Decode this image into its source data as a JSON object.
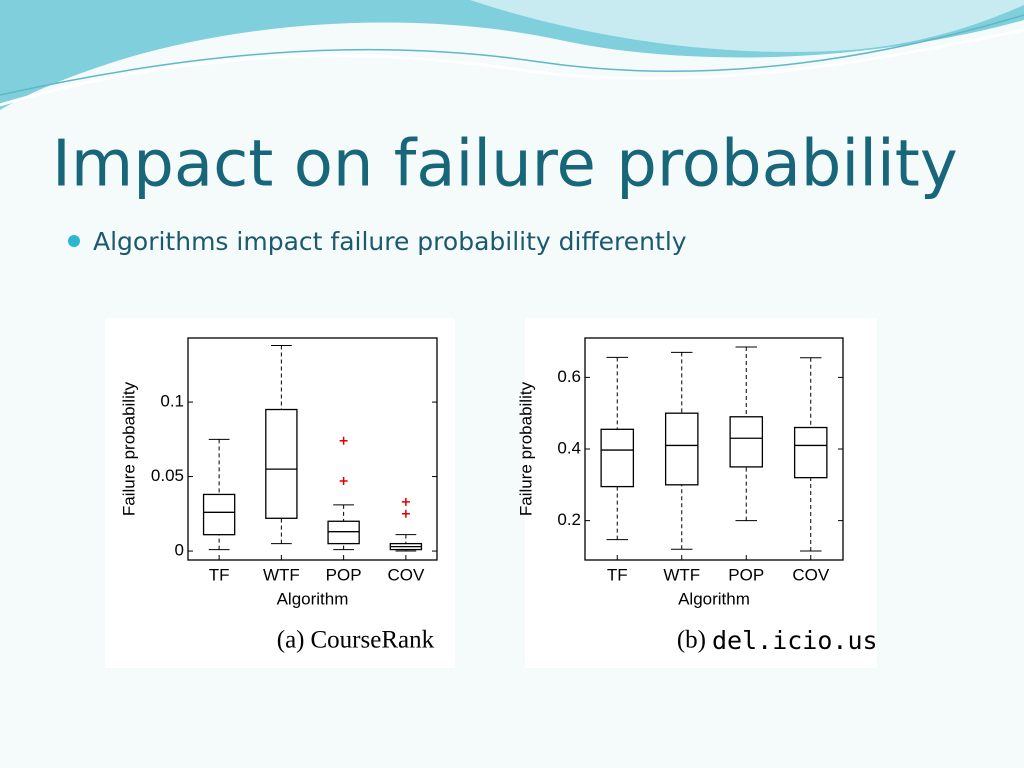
{
  "title": "Impact on failure probability",
  "bullets": [
    "Algorithms impact failure probability differently"
  ],
  "chart_data": [
    {
      "type": "box",
      "caption_label": "(a)",
      "caption": "CourseRank",
      "xlabel": "Algorithm",
      "ylabel": "Failure probability",
      "categories": [
        "TF",
        "WTF",
        "POP",
        "COV"
      ],
      "min": [
        0.001,
        0.005,
        0.001,
        0
      ],
      "q1": [
        0.011,
        0.022,
        0.005,
        0.001
      ],
      "median": [
        0.026,
        0.055,
        0.013,
        0.003
      ],
      "q3": [
        0.038,
        0.095,
        0.02,
        0.005
      ],
      "max": [
        0.075,
        0.138,
        0.031,
        0.011
      ],
      "outliers": [
        [],
        [],
        [
          0.074,
          0.047
        ],
        [
          0.033,
          0.025
        ]
      ],
      "color": "#000000",
      "outlier_color": "#e00000",
      "ylim": [
        -0.006,
        0.143
      ],
      "yticks": [
        0,
        0.05,
        0.1
      ]
    },
    {
      "type": "box",
      "caption_label": "(b)",
      "caption": "del.icio.us",
      "xlabel": "Algorithm",
      "ylabel": "Failure probability",
      "categories": [
        "TF",
        "WTF",
        "POP",
        "COV"
      ],
      "min": [
        0.147,
        0.12,
        0.2,
        0.115
      ],
      "q1": [
        0.295,
        0.3,
        0.35,
        0.32
      ],
      "median": [
        0.397,
        0.41,
        0.43,
        0.41
      ],
      "q3": [
        0.455,
        0.5,
        0.49,
        0.46
      ],
      "max": [
        0.656,
        0.67,
        0.685,
        0.655
      ],
      "outliers": [
        [],
        [],
        [],
        []
      ],
      "color": "#000000",
      "outlier_color": "#e00000",
      "ylim": [
        0.09,
        0.71
      ],
      "yticks": [
        0.2,
        0.4,
        0.6
      ]
    }
  ]
}
